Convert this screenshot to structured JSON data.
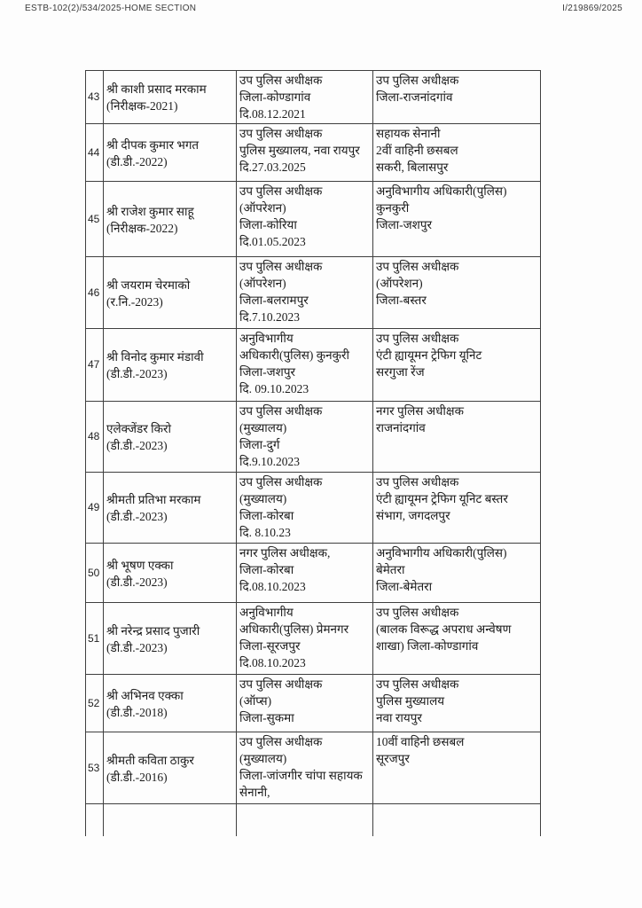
{
  "header": {
    "left": "ESTB-102(2)/534/2025-HOME SECTION",
    "right": "I/219869/2025"
  },
  "table": {
    "rows": [
      {
        "no": "43",
        "name": "श्री काशी प्रसाद मरकाम\n(निरीक्षक-2021)",
        "from": "उप पुलिस अधीक्षक\nजिला-कोण्डागांव\nदि.08.12.2021",
        "to": "उप पुलिस अधीक्षक\nजिला-राजनांदगांव"
      },
      {
        "no": "44",
        "name": "श्री दीपक कुमार भगत\n(डी.डी.-2022)",
        "from": "उप पुलिस अधीक्षक\nपुलिस मुख्यालय, नवा रायपुर\nदि.27.03.2025",
        "to": "सहायक सेनानी\n2वीं वाहिनी छसबल\nसकरी, बिलासपुर"
      },
      {
        "no": "45",
        "name": "श्री राजेश कुमार साहू\n(निरीक्षक-2022)",
        "from": "उप पुलिस अधीक्षक\n(ऑपरेशन)\nजिला-कोरिया\nदि.01.05.2023",
        "to": "अनुविभागीय अधिकारी(पुलिस)\nकुनकुरी\nजिला-जशपुर"
      },
      {
        "no": "46",
        "name": "श्री जयराम चेरमाको\n(र.नि.-2023)",
        "from": "उप पुलिस अधीक्षक\n(ऑपरेशन)\nजिला-बलरामपुर\nदि.7.10.2023",
        "to": "उप पुलिस अधीक्षक\n(ऑपरेशन)\nजिला-बस्तर"
      },
      {
        "no": "47",
        "name": "श्री विनोद कुमार मंडावी\n(डी.डी.-2023)",
        "from": "अनुविभागीय\nअधिकारी(पुलिस) कुनकुरी\nजिला-जशपुर\nदि. 09.10.2023",
        "to": "उप पुलिस अधीक्षक\nएंटी ह्यायूमन ट्रेफिग यूनिट\nसरगुजा रेंज"
      },
      {
        "no": "48",
        "name": "एलेक्जेंडर किरो\n(डी.डी.-2023)",
        "from": "उप पुलिस अधीक्षक\n(मुख्यालय)\nजिला-दुर्ग\nदि.9.10.2023",
        "to": "नगर पुलिस अधीक्षक\nराजनांदगांव"
      },
      {
        "no": "49",
        "name": "श्रीमती प्रतिभा मरकाम\n(डी.डी.-2023)",
        "from": "उप पुलिस अधीक्षक\n(मुख्यालय)\nजिला-कोरबा\nदि. 8.10.23",
        "to": "उप पुलिस अधीक्षक\nएंटी ह्यायूमन ट्रेफिग यूनिट बस्तर\nसंभाग, जगदलपुर"
      },
      {
        "no": "50",
        "name": "श्री भूषण एक्का\n(डी.डी.-2023)",
        "from": "नगर पुलिस अधीक्षक,\nजिला-कोरबा\nदि.08.10.2023",
        "to": "अनुविभागीय अधिकारी(पुलिस)\nबेमेतरा\nजिला-बेमेतरा"
      },
      {
        "no": "51",
        "name": "श्री नरेन्द्र प्रसाद पुजारी\n(डी.डी.-2023)",
        "from": "अनुविभागीय\nअधिकारी(पुलिस) प्रेमनगर\nजिला-सूरजपुर\nदि.08.10.2023",
        "to": "उप पुलिस अधीक्षक\n(बालक विरूद्ध अपराध अन्वेषण\nशाखा) जिला-कोण्डागांव"
      },
      {
        "no": "52",
        "name": "श्री अभिनव एक्का\n(डी.डी.-2018)",
        "from": "उप पुलिस अधीक्षक\n(ऑप्स)\nजिला-सुकमा",
        "to": "उप पुलिस अधीक्षक\nपुलिस मुख्यालय\nनवा रायपुर"
      },
      {
        "no": "53",
        "name": "श्रीमती कविता ठाकुर\n(डी.डी.-2016)",
        "from": "उप पुलिस अधीक्षक\n(मुख्यालय)\nजिला-जांजगीर चांपा सहायक\nसेनानी,",
        "to": "10वीं वाहिनी छसबल\nसूरजपुर"
      }
    ]
  }
}
